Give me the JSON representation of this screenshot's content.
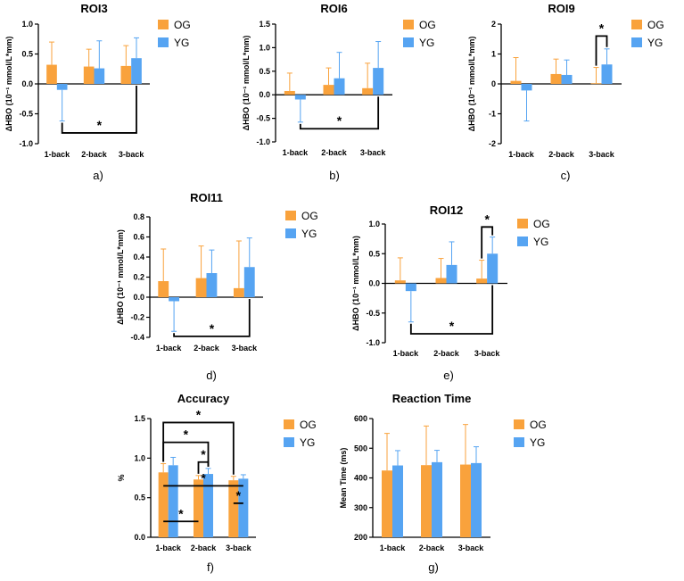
{
  "colors": {
    "og": "#f9a23c",
    "yg": "#56a4f2",
    "axis": "#000000"
  },
  "legend": {
    "og": "OG",
    "yg": "YG"
  },
  "chart_data": [
    {
      "type": "bar",
      "panel_label": "a)",
      "title": "ROI3",
      "ylabel": "ΔHBO (10⁻¹ mmol/L*mm)",
      "categories": [
        "1-back",
        "2-back",
        "3-back"
      ],
      "ylim": [
        -1.0,
        1.0
      ],
      "yticks": [
        -1.0,
        -0.5,
        0.0,
        0.5,
        1.0
      ],
      "ytick_labels": [
        "-1.0",
        "-0.5",
        "0.0",
        "0.5",
        "1.0"
      ],
      "series": [
        {
          "name": "OG",
          "values": [
            0.32,
            0.29,
            0.3
          ],
          "errors": [
            0.38,
            0.29,
            0.34
          ]
        },
        {
          "name": "YG",
          "values": [
            -0.1,
            0.26,
            0.43
          ],
          "errors": [
            0.52,
            0.46,
            0.34
          ]
        }
      ],
      "significance": [
        {
          "type": "bottom",
          "x1": [
            0,
            1
          ],
          "x2": [
            2,
            1
          ],
          "level": -0.82,
          "label": "*"
        }
      ]
    },
    {
      "type": "bar",
      "panel_label": "b)",
      "title": "ROI6",
      "ylabel": "ΔHBO (10⁻¹ mmol/L*mm)",
      "categories": [
        "1-back",
        "2-back",
        "3-back"
      ],
      "ylim": [
        -1.0,
        1.5
      ],
      "yticks": [
        -1.0,
        -0.5,
        0.0,
        0.5,
        1.0,
        1.5
      ],
      "ytick_labels": [
        "-1.0",
        "-0.5",
        "0.0",
        "0.5",
        "1.0",
        "1.5"
      ],
      "series": [
        {
          "name": "OG",
          "values": [
            0.08,
            0.21,
            0.14
          ],
          "errors": [
            0.38,
            0.36,
            0.53
          ]
        },
        {
          "name": "YG",
          "values": [
            -0.1,
            0.35,
            0.57
          ],
          "errors": [
            0.48,
            0.55,
            0.56
          ]
        }
      ],
      "significance": [
        {
          "type": "bottom",
          "x1": [
            0,
            1
          ],
          "x2": [
            2,
            1
          ],
          "level": -0.72,
          "label": "*"
        }
      ]
    },
    {
      "type": "bar",
      "panel_label": "c)",
      "title": "ROI9",
      "ylabel": "ΔHBO (10⁻¹ mmol/L*mm)",
      "categories": [
        "1-back",
        "2-back",
        "3-back"
      ],
      "ylim": [
        -2.0,
        2.0
      ],
      "yticks": [
        -2,
        -1,
        0,
        1,
        2
      ],
      "ytick_labels": [
        "-2",
        "-1",
        "0",
        "1",
        "2"
      ],
      "series": [
        {
          "name": "OG",
          "values": [
            0.1,
            0.33,
            0.02
          ],
          "errors": [
            0.78,
            0.5,
            0.53
          ]
        },
        {
          "name": "YG",
          "values": [
            -0.22,
            0.3,
            0.65
          ],
          "errors": [
            1.02,
            0.5,
            0.52
          ]
        }
      ],
      "significance": [
        {
          "type": "top",
          "x1": [
            2,
            0
          ],
          "x2": [
            2,
            1
          ],
          "level": 1.6,
          "label": "*"
        }
      ]
    },
    {
      "type": "bar",
      "panel_label": "d)",
      "title": "ROI11",
      "ylabel": "ΔHBO (10⁻¹ mmol/L*mm)",
      "categories": [
        "1-back",
        "2-back",
        "3-back"
      ],
      "ylim": [
        -0.4,
        0.8
      ],
      "yticks": [
        -0.4,
        -0.2,
        0.0,
        0.2,
        0.4,
        0.6,
        0.8
      ],
      "ytick_labels": [
        "-0.4",
        "-0.2",
        "0.0",
        "0.2",
        "0.4",
        "0.6",
        "0.8"
      ],
      "series": [
        {
          "name": "OG",
          "values": [
            0.16,
            0.19,
            0.09
          ],
          "errors": [
            0.32,
            0.32,
            0.47
          ]
        },
        {
          "name": "YG",
          "values": [
            -0.04,
            0.24,
            0.3
          ],
          "errors": [
            0.3,
            0.23,
            0.29
          ]
        }
      ],
      "significance": [
        {
          "type": "bottom",
          "x1": [
            0,
            1
          ],
          "x2": [
            2,
            1
          ],
          "level": -0.39,
          "label": "*"
        }
      ]
    },
    {
      "type": "bar",
      "panel_label": "e)",
      "title": "ROI12",
      "ylabel": "ΔHBO (10⁻¹ mmol/L*mm)",
      "categories": [
        "1-back",
        "2-back",
        "3-back"
      ],
      "ylim": [
        -1.0,
        1.0
      ],
      "yticks": [
        -1.0,
        -0.5,
        0.0,
        0.5,
        1.0
      ],
      "ytick_labels": [
        "-1.0",
        "-0.5",
        "0.0",
        "0.5",
        "1.0"
      ],
      "series": [
        {
          "name": "OG",
          "values": [
            0.05,
            0.09,
            0.08
          ],
          "errors": [
            0.38,
            0.33,
            0.31
          ]
        },
        {
          "name": "YG",
          "values": [
            -0.13,
            0.31,
            0.5
          ],
          "errors": [
            0.52,
            0.39,
            0.28
          ]
        }
      ],
      "significance": [
        {
          "type": "bottom",
          "x1": [
            0,
            1
          ],
          "x2": [
            2,
            1
          ],
          "level": -0.85,
          "label": "*"
        },
        {
          "type": "top",
          "x1": [
            2,
            0
          ],
          "x2": [
            2,
            1
          ],
          "level": 0.95,
          "label": "*"
        }
      ]
    },
    {
      "type": "bar",
      "panel_label": "f)",
      "title": "Accuracy",
      "ylabel": "%",
      "categories": [
        "1-back",
        "2-back",
        "3-back"
      ],
      "ylim": [
        0.0,
        1.5
      ],
      "yticks": [
        0.0,
        0.5,
        1.0,
        1.5
      ],
      "ytick_labels": [
        "0.0",
        "0.5",
        "1.0",
        "1.5"
      ],
      "series": [
        {
          "name": "OG",
          "values": [
            0.82,
            0.73,
            0.72
          ],
          "errors": [
            0.11,
            0.05,
            0.05
          ]
        },
        {
          "name": "YG",
          "values": [
            0.91,
            0.8,
            0.74
          ],
          "errors": [
            0.1,
            0.07,
            0.05
          ]
        }
      ],
      "significance": [
        {
          "type": "top",
          "x1": [
            0,
            0
          ],
          "x2": [
            2,
            0
          ],
          "level": 1.45,
          "label": "*"
        },
        {
          "type": "top",
          "x1": [
            0,
            0
          ],
          "x2": [
            1,
            1
          ],
          "level": 1.2,
          "label": "*"
        },
        {
          "type": "top",
          "x1": [
            1,
            0
          ],
          "x2": [
            1,
            1
          ],
          "level": 0.95,
          "label": "*"
        },
        {
          "type": "hline",
          "x1": [
            0,
            0
          ],
          "x2": [
            2,
            1
          ],
          "level": 0.65,
          "label": "*"
        },
        {
          "type": "hline",
          "x1": [
            2,
            0
          ],
          "x2": [
            2,
            1
          ],
          "level": 0.43,
          "label": "*"
        },
        {
          "type": "hline",
          "x1": [
            0,
            0
          ],
          "x2": [
            1,
            0
          ],
          "level": 0.2,
          "label": "*"
        }
      ]
    },
    {
      "type": "bar",
      "panel_label": "g)",
      "title": "Reaction Time",
      "ylabel": "Mean Time (ms)",
      "categories": [
        "1-back",
        "2-back",
        "3-back"
      ],
      "ylim": [
        200,
        600
      ],
      "yticks": [
        200,
        300,
        400,
        500,
        600
      ],
      "ytick_labels": [
        "200",
        "300",
        "400",
        "500",
        "600"
      ],
      "series": [
        {
          "name": "OG",
          "values": [
            425,
            443,
            445
          ],
          "errors": [
            125,
            132,
            135
          ]
        },
        {
          "name": "YG",
          "values": [
            442,
            453,
            450
          ],
          "errors": [
            50,
            40,
            55
          ]
        }
      ],
      "significance": []
    }
  ]
}
